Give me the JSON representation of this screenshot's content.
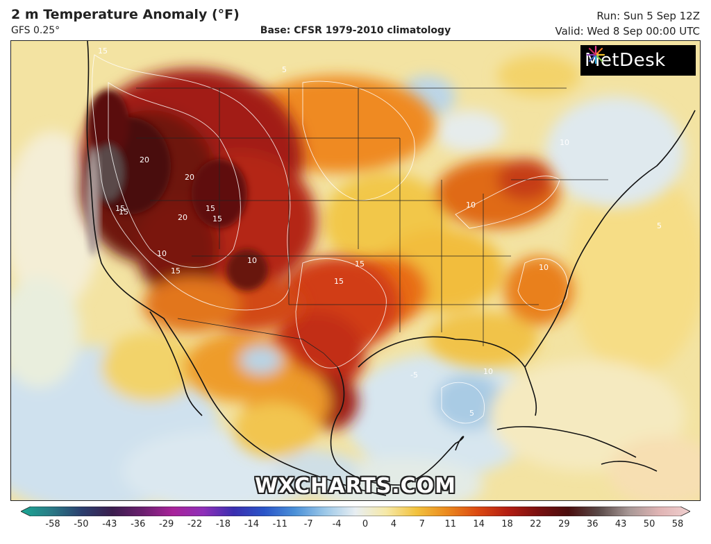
{
  "header": {
    "title": "2 m Temperature Anomaly (°F)",
    "model": "GFS 0.25°",
    "base": "Base: CFSR 1979-2010 climatology",
    "run": "Run: Sun 5 Sep 12Z",
    "valid": "Valid: Wed 8 Sep 00:00 UTC"
  },
  "logo": {
    "text": "MetDesk",
    "icon": "metdesk-starburst-icon"
  },
  "watermark": "WXCHARTS.COM",
  "colorbar": {
    "ticks": [
      "-58",
      "-50",
      "-43",
      "-36",
      "-29",
      "-22",
      "-18",
      "-14",
      "-11",
      "-7",
      "-4",
      "0",
      "4",
      "7",
      "11",
      "14",
      "18",
      "22",
      "29",
      "36",
      "43",
      "50",
      "58"
    ],
    "colors": [
      "#1aa894",
      "#2a7a86",
      "#2b3f6e",
      "#3b1e4e",
      "#6a1f6e",
      "#a8239a",
      "#8f2fb8",
      "#3a2fb0",
      "#2a55c8",
      "#4a90d8",
      "#9cc8e8",
      "#e8eef2",
      "#f6e9a8",
      "#f2c23e",
      "#eb8a1e",
      "#dc4a12",
      "#b41e12",
      "#7a1010",
      "#4a0e0e",
      "#5a4a48",
      "#a89896",
      "#e0b4b4",
      "#f0d0d0"
    ]
  },
  "map_labels": [
    {
      "text": "15"
    },
    {
      "text": "20"
    },
    {
      "text": "15"
    },
    {
      "text": "20"
    },
    {
      "text": "15"
    },
    {
      "text": "15"
    },
    {
      "text": "20"
    },
    {
      "text": "10"
    },
    {
      "text": "15"
    },
    {
      "text": "15"
    },
    {
      "text": "10"
    },
    {
      "text": "15"
    },
    {
      "text": "10"
    },
    {
      "text": "10"
    },
    {
      "text": "10"
    },
    {
      "text": "5"
    },
    {
      "text": "5"
    },
    {
      "text": "5"
    },
    {
      "text": "-5"
    },
    {
      "text": "10"
    },
    {
      "text": "15"
    }
  ],
  "colors": {
    "text": "#222222",
    "logo_bg": "#000000",
    "border": "#222222"
  }
}
